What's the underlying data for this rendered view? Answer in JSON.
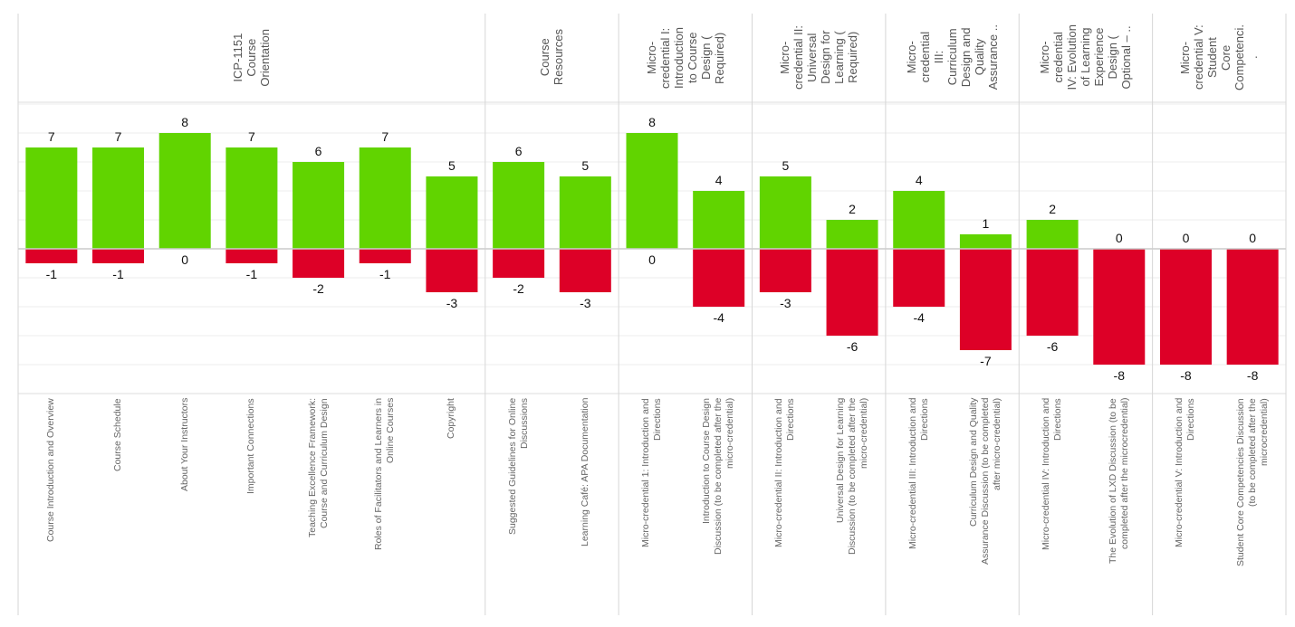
{
  "chart_data": {
    "type": "bar",
    "stacked": "diverging",
    "grid": true,
    "ylim": [
      -10,
      10
    ],
    "colors": {
      "positive": "#61d400",
      "negative": "#dd0027"
    },
    "groups": [
      {
        "label": "ICP-1151\nCourse\nOrientation",
        "count": 7
      },
      {
        "label": "Course\nResources",
        "count": 2
      },
      {
        "label": "Micro-\ncredential I:\nIntroduction\nto Course\nDesign (\nRequired)",
        "count": 2
      },
      {
        "label": "Micro-\ncredential II:\nUniversal\nDesign for\nLearning (\nRequired)",
        "count": 2
      },
      {
        "label": "Micro-\ncredential\nIII:\nCurriculum\nDesign and\nQuality\nAssurance ..",
        "count": 2
      },
      {
        "label": "Micro-\ncredential\nIV: Evolution\nof Learning\nExperience\nDesign (\nOptional – ..",
        "count": 2
      },
      {
        "label": "Micro-\ncredential V:\nStudent\nCore\nCompetenci.\n.",
        "count": 2
      }
    ],
    "categories": [
      "Course Introduction and Overview",
      "Course Schedule",
      "About Your Instructors",
      "Important Connections",
      "Teaching Excellence Framework:\nCourse and Curriculum Design",
      "Roles of Facilitators and Learners in\nOnline Courses",
      "Copyright",
      "Suggested Guidelines for Online\nDiscussions",
      "Learning Café: APA Documentation",
      "Micro-credential 1: Introduction and\nDirections",
      "Introduction to Course Design\nDiscussion (to be completed after the\nmicro-credential)",
      "Micro-credential II: Introduction and\nDirections",
      "Universal Design for Learning\nDiscussion (to be completed after the\nmicro-credential)",
      "Micro-credential III: Introduction and\nDirections",
      "Curriculum Design and Quality\nAssurance Discussion (to be completed\nafter micro-credential)",
      "Micro-credential IV: Introduction and\nDirections",
      "The Evolution of LXD Discussion (to be\ncompleted after the microcredential)",
      "Micro-credential V: Introduction and\nDirections",
      "Student Core Competencies Discussion\n(to be completed after the\nmicrocredential)"
    ],
    "series": [
      {
        "values": [
          7,
          7,
          8,
          7,
          6,
          7,
          5,
          6,
          5,
          8,
          4,
          5,
          2,
          4,
          1,
          2,
          0,
          0,
          0
        ]
      },
      {
        "values": [
          -1,
          -1,
          0,
          -1,
          -2,
          -1,
          -3,
          -2,
          -3,
          0,
          -4,
          -3,
          -6,
          -4,
          -7,
          -6,
          -8,
          -8,
          -8
        ]
      }
    ]
  }
}
